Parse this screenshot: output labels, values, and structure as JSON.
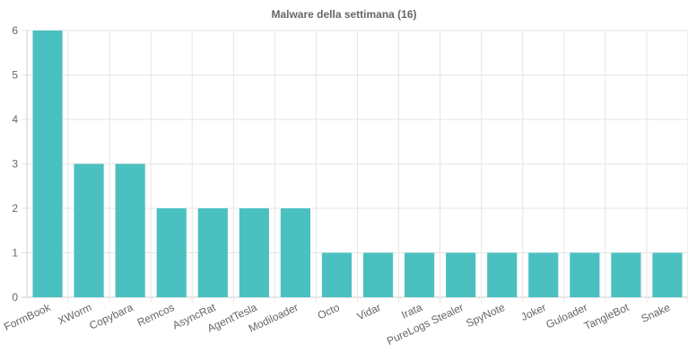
{
  "chart_data": {
    "type": "bar",
    "title": "Malware della settimana (16)",
    "xlabel": "",
    "ylabel": "",
    "categories": [
      "FormBook",
      "XWorm",
      "Copybara",
      "Remcos",
      "AsyncRat",
      "AgentTesla",
      "Modiloader",
      "Octo",
      "Vidar",
      "Irata",
      "PureLogs Stealer",
      "SpyNote",
      "Joker",
      "Guloader",
      "TangleBot",
      "Snake"
    ],
    "values": [
      6,
      3,
      3,
      2,
      2,
      2,
      2,
      1,
      1,
      1,
      1,
      1,
      1,
      1,
      1,
      1
    ],
    "ylim": [
      0,
      6
    ],
    "yticks": [
      "0",
      "1",
      "2",
      "3",
      "4",
      "5",
      "6"
    ],
    "grid": true,
    "legend": "none",
    "bar_color": "#4bc0c0"
  }
}
